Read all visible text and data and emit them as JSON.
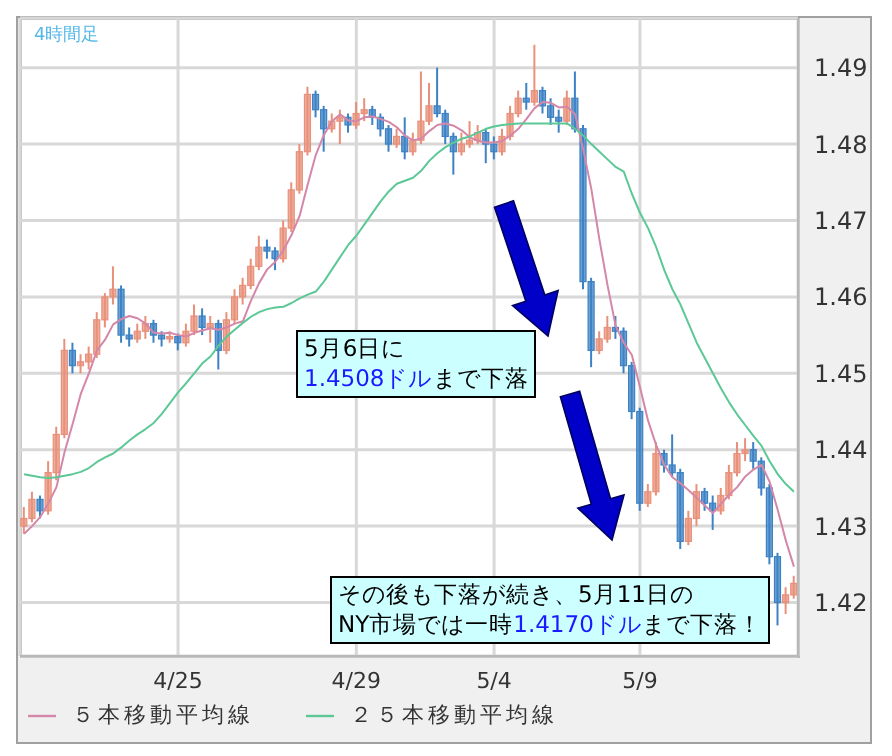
{
  "chart_data": {
    "type": "candlestick",
    "title": "4時間足",
    "categories": [
      null,
      null,
      null,
      null,
      null,
      null,
      null,
      null,
      null,
      null,
      null,
      null,
      null,
      null,
      null,
      null,
      null,
      null,
      null,
      "4/25",
      null,
      null,
      null,
      null,
      null,
      null,
      null,
      null,
      null,
      null,
      null,
      null,
      null,
      null,
      null,
      null,
      null,
      null,
      null,
      null,
      null,
      "4/29",
      null,
      null,
      null,
      null,
      null,
      null,
      null,
      null,
      null,
      null,
      null,
      null,
      null,
      null,
      null,
      null,
      "5/4",
      null,
      null,
      null,
      null,
      null,
      null,
      null,
      null,
      null,
      null,
      null,
      null,
      null,
      null,
      null,
      null,
      null,
      "5/9",
      null,
      null,
      null,
      null,
      null,
      null,
      null,
      null,
      null,
      null,
      null,
      null,
      null,
      null,
      null,
      null,
      null,
      null,
      null
    ],
    "ohlc": [
      [
        1.43,
        1.4325,
        1.429,
        1.431
      ],
      [
        1.431,
        1.4345,
        1.4305,
        1.4335
      ],
      [
        1.4335,
        1.434,
        1.431,
        1.432
      ],
      [
        1.432,
        1.4385,
        1.4315,
        1.437
      ],
      [
        1.437,
        1.443,
        1.436,
        1.442
      ],
      [
        1.442,
        1.4545,
        1.4415,
        1.453
      ],
      [
        1.453,
        1.454,
        1.45,
        1.451
      ],
      [
        1.451,
        1.4525,
        1.45,
        1.4515
      ],
      [
        1.4515,
        1.4535,
        1.4505,
        1.4525
      ],
      [
        1.4525,
        1.458,
        1.452,
        1.457
      ],
      [
        1.457,
        1.4605,
        1.456,
        1.46
      ],
      [
        1.46,
        1.464,
        1.459,
        1.461
      ],
      [
        1.461,
        1.4615,
        1.454,
        1.455
      ],
      [
        1.455,
        1.456,
        1.4535,
        1.4545
      ],
      [
        1.4545,
        1.4565,
        1.454,
        1.4555
      ],
      [
        1.4555,
        1.4575,
        1.4545,
        1.4565
      ],
      [
        1.4565,
        1.457,
        1.454,
        1.455
      ],
      [
        1.455,
        1.4555,
        1.4535,
        1.4545
      ],
      [
        1.4545,
        1.4555,
        1.454,
        1.4548
      ],
      [
        1.4548,
        1.4552,
        1.453,
        1.454
      ],
      [
        1.454,
        1.4565,
        1.4535,
        1.4555
      ],
      [
        1.4555,
        1.459,
        1.455,
        1.4575
      ],
      [
        1.4575,
        1.4585,
        1.455,
        1.456
      ],
      [
        1.456,
        1.4575,
        1.454,
        1.4565
      ],
      [
        1.4565,
        1.457,
        1.4505,
        1.453
      ],
      [
        1.453,
        1.458,
        1.4525,
        1.457
      ],
      [
        1.457,
        1.461,
        1.4565,
        1.46
      ],
      [
        1.46,
        1.4625,
        1.459,
        1.4615
      ],
      [
        1.4615,
        1.465,
        1.461,
        1.464
      ],
      [
        1.464,
        1.468,
        1.4635,
        1.4665
      ],
      [
        1.4665,
        1.4675,
        1.465,
        1.466
      ],
      [
        1.466,
        1.4665,
        1.4635,
        1.465
      ],
      [
        1.465,
        1.47,
        1.4645,
        1.469
      ],
      [
        1.469,
        1.475,
        1.4685,
        1.474
      ],
      [
        1.474,
        1.48,
        1.4735,
        1.479
      ],
      [
        1.479,
        1.4875,
        1.4785,
        1.4865
      ],
      [
        1.4865,
        1.487,
        1.4835,
        1.4845
      ],
      [
        1.4845,
        1.485,
        1.479,
        1.482
      ],
      [
        1.482,
        1.484,
        1.4815,
        1.483
      ],
      [
        1.483,
        1.4845,
        1.48,
        1.4835
      ],
      [
        1.4835,
        1.484,
        1.4815,
        1.4825
      ],
      [
        1.4825,
        1.4855,
        1.482,
        1.484
      ],
      [
        1.484,
        1.486,
        1.483,
        1.4845
      ],
      [
        1.4845,
        1.485,
        1.4825,
        1.4835
      ],
      [
        1.4835,
        1.484,
        1.481,
        1.482
      ],
      [
        1.482,
        1.4825,
        1.479,
        1.48
      ],
      [
        1.48,
        1.482,
        1.4795,
        1.481
      ],
      [
        1.481,
        1.4835,
        1.478,
        1.479
      ],
      [
        1.479,
        1.4815,
        1.4785,
        1.4805
      ],
      [
        1.4805,
        1.4895,
        1.48,
        1.483
      ],
      [
        1.483,
        1.488,
        1.4825,
        1.485
      ],
      [
        1.485,
        1.49,
        1.4835,
        1.484
      ],
      [
        1.484,
        1.4845,
        1.48,
        1.481
      ],
      [
        1.481,
        1.4815,
        1.476,
        1.479
      ],
      [
        1.479,
        1.4815,
        1.4785,
        1.48
      ],
      [
        1.48,
        1.483,
        1.4795,
        1.4805
      ],
      [
        1.4805,
        1.4825,
        1.48,
        1.4815
      ],
      [
        1.4815,
        1.482,
        1.4775,
        1.48
      ],
      [
        1.48,
        1.481,
        1.478,
        1.479
      ],
      [
        1.479,
        1.482,
        1.4785,
        1.481
      ],
      [
        1.481,
        1.485,
        1.4805,
        1.484
      ],
      [
        1.484,
        1.487,
        1.4835,
        1.486
      ],
      [
        1.486,
        1.488,
        1.4845,
        1.4855
      ],
      [
        1.4855,
        1.493,
        1.485,
        1.487
      ],
      [
        1.487,
        1.4875,
        1.484,
        1.485
      ],
      [
        1.485,
        1.486,
        1.4825,
        1.4835
      ],
      [
        1.4835,
        1.4845,
        1.4815,
        1.483
      ],
      [
        1.483,
        1.487,
        1.4825,
        1.486
      ],
      [
        1.486,
        1.4895,
        1.4815,
        1.482
      ],
      [
        1.482,
        1.4825,
        1.461,
        1.462
      ],
      [
        1.462,
        1.4625,
        1.4508,
        1.453
      ],
      [
        1.453,
        1.4555,
        1.4525,
        1.4545
      ],
      [
        1.4545,
        1.4575,
        1.454,
        1.456
      ],
      [
        1.456,
        1.4575,
        1.4545,
        1.4555
      ],
      [
        1.4555,
        1.456,
        1.45,
        1.451
      ],
      [
        1.451,
        1.4515,
        1.444,
        1.445
      ],
      [
        1.445,
        1.4455,
        1.432,
        1.433
      ],
      [
        1.433,
        1.4355,
        1.4325,
        1.4345
      ],
      [
        1.4345,
        1.441,
        1.434,
        1.4395
      ],
      [
        1.4395,
        1.44,
        1.437,
        1.438
      ],
      [
        1.438,
        1.442,
        1.4365,
        1.437
      ],
      [
        1.437,
        1.4375,
        1.427,
        1.428
      ],
      [
        1.428,
        1.432,
        1.4275,
        1.431
      ],
      [
        1.431,
        1.4355,
        1.43,
        1.4345
      ],
      [
        1.4345,
        1.435,
        1.432,
        1.433
      ],
      [
        1.433,
        1.434,
        1.4295,
        1.432
      ],
      [
        1.432,
        1.435,
        1.4315,
        1.434
      ],
      [
        1.434,
        1.438,
        1.4335,
        1.437
      ],
      [
        1.437,
        1.441,
        1.4365,
        1.4395
      ],
      [
        1.4395,
        1.4415,
        1.4385,
        1.44
      ],
      [
        1.44,
        1.441,
        1.4375,
        1.4385
      ],
      [
        1.4385,
        1.439,
        1.434,
        1.435
      ],
      [
        1.435,
        1.4355,
        1.425,
        1.426
      ],
      [
        1.426,
        1.4265,
        1.417,
        1.42
      ],
      [
        1.42,
        1.422,
        1.4185,
        1.421
      ],
      [
        1.421,
        1.4235,
        1.4205,
        1.4225
      ]
    ],
    "colors": [
      "#e8907a",
      "#e8907a",
      "#3c82c4",
      "#e8907a",
      "#e8907a",
      "#e8907a",
      "#3c82c4",
      "#e8907a",
      "#e8907a",
      "#e8907a",
      "#e8907a",
      "#e8907a",
      "#3c82c4",
      "#3c82c4",
      "#e8907a",
      "#e8907a",
      "#3c82c4",
      "#3c82c4",
      "#e8907a",
      "#3c82c4",
      "#e8907a",
      "#e8907a",
      "#3c82c4",
      "#e8907a",
      "#3c82c4",
      "#e8907a",
      "#e8907a",
      "#e8907a",
      "#e8907a",
      "#e8907a",
      "#3c82c4",
      "#3c82c4",
      "#e8907a",
      "#e8907a",
      "#e8907a",
      "#e8907a",
      "#3c82c4",
      "#3c82c4",
      "#e8907a",
      "#e8907a",
      "#3c82c4",
      "#e8907a",
      "#e8907a",
      "#3c82c4",
      "#3c82c4",
      "#3c82c4",
      "#e8907a",
      "#3c82c4",
      "#e8907a",
      "#e8907a",
      "#e8907a",
      "#3c82c4",
      "#3c82c4",
      "#3c82c4",
      "#e8907a",
      "#e8907a",
      "#e8907a",
      "#3c82c4",
      "#3c82c4",
      "#e8907a",
      "#e8907a",
      "#e8907a",
      "#3c82c4",
      "#e8907a",
      "#3c82c4",
      "#3c82c4",
      "#3c82c4",
      "#e8907a",
      "#3c82c4",
      "#3c82c4",
      "#3c82c4",
      "#e8907a",
      "#e8907a",
      "#3c82c4",
      "#3c82c4",
      "#3c82c4",
      "#3c82c4",
      "#e8907a",
      "#e8907a",
      "#3c82c4",
      "#3c82c4",
      "#3c82c4",
      "#e8907a",
      "#e8907a",
      "#3c82c4",
      "#3c82c4",
      "#e8907a",
      "#e8907a",
      "#e8907a",
      "#e8907a",
      "#3c82c4",
      "#3c82c4",
      "#3c82c4",
      "#3c82c4",
      "#e8907a",
      "#e8907a"
    ],
    "series": [
      {
        "name": "５本移動平均線",
        "type": "line",
        "color": "#d487a8",
        "values": [
          1.429,
          1.43,
          1.4312,
          1.433,
          1.4351,
          1.4397,
          1.4434,
          1.4473,
          1.45,
          1.453,
          1.4544,
          1.4564,
          1.4571,
          1.4575,
          1.4572,
          1.4565,
          1.4553,
          1.4552,
          1.4553,
          1.455,
          1.4548,
          1.4553,
          1.4556,
          1.4559,
          1.4557,
          1.456,
          1.4565,
          1.4568,
          1.4595,
          1.4618,
          1.4636,
          1.4646,
          1.4661,
          1.4681,
          1.4706,
          1.4747,
          1.4786,
          1.4812,
          1.483,
          1.4839,
          1.4831,
          1.483,
          1.4835,
          1.4836,
          1.4833,
          1.4829,
          1.4822,
          1.4811,
          1.4805,
          1.4807,
          1.4817,
          1.4825,
          1.4827,
          1.4824,
          1.4818,
          1.4809,
          1.4804,
          1.4802,
          1.4802,
          1.4804,
          1.4811,
          1.482,
          1.4833,
          1.4847,
          1.4855,
          1.4854,
          1.4848,
          1.4849,
          1.4839,
          1.4793,
          1.4741,
          1.4675,
          1.4615,
          1.4562,
          1.454,
          1.4524,
          1.4482,
          1.4438,
          1.4406,
          1.438,
          1.4364,
          1.4356,
          1.4347,
          1.4337,
          1.4327,
          1.4317,
          1.4329,
          1.4341,
          1.4351,
          1.4365,
          1.4374,
          1.438,
          1.4358,
          1.4321,
          1.4281,
          1.4247
        ]
      },
      {
        "name": "２５本移動平均線",
        "type": "line",
        "color": "#5cc896",
        "values": [
          1.4368,
          1.4366,
          1.4364,
          1.4363,
          1.4364,
          1.4366,
          1.4368,
          1.4371,
          1.4376,
          1.4384,
          1.439,
          1.4395,
          1.4403,
          1.4412,
          1.442,
          1.4427,
          1.4435,
          1.4447,
          1.4461,
          1.4475,
          1.4487,
          1.45,
          1.4513,
          1.4522,
          1.4536,
          1.4548,
          1.4557,
          1.4566,
          1.4574,
          1.458,
          1.4584,
          1.4586,
          1.4587,
          1.4592,
          1.4598,
          1.4603,
          1.4607,
          1.462,
          1.4636,
          1.4652,
          1.4668,
          1.468,
          1.4695,
          1.471,
          1.4725,
          1.4738,
          1.4748,
          1.4752,
          1.4756,
          1.4765,
          1.4778,
          1.4788,
          1.4796,
          1.4802,
          1.4807,
          1.481,
          1.4815,
          1.482,
          1.4823,
          1.4825,
          1.4826,
          1.4827,
          1.4827,
          1.4827,
          1.4827,
          1.4827,
          1.4827,
          1.4827,
          1.482,
          1.4811,
          1.48,
          1.479,
          1.478,
          1.477,
          1.4764,
          1.4735,
          1.471,
          1.469,
          1.4665,
          1.4635,
          1.461,
          1.459,
          1.4565,
          1.454,
          1.452,
          1.45,
          1.448,
          1.4462,
          1.4446,
          1.4432,
          1.4418,
          1.4405,
          1.4385,
          1.4368,
          1.4355,
          1.4345
        ]
      }
    ],
    "ylim": [
      1.413,
      1.4965
    ],
    "yticks": [
      1.42,
      1.43,
      1.44,
      1.45,
      1.46,
      1.47,
      1.48,
      1.49
    ],
    "grid": true,
    "legend": "bottom",
    "annotations": [
      "5月6日に\n1.4508ドルまで下落",
      "その後も下落が続き、5月11日の\nNY市場では一時1.4170ドルまで下落！"
    ]
  }
}
